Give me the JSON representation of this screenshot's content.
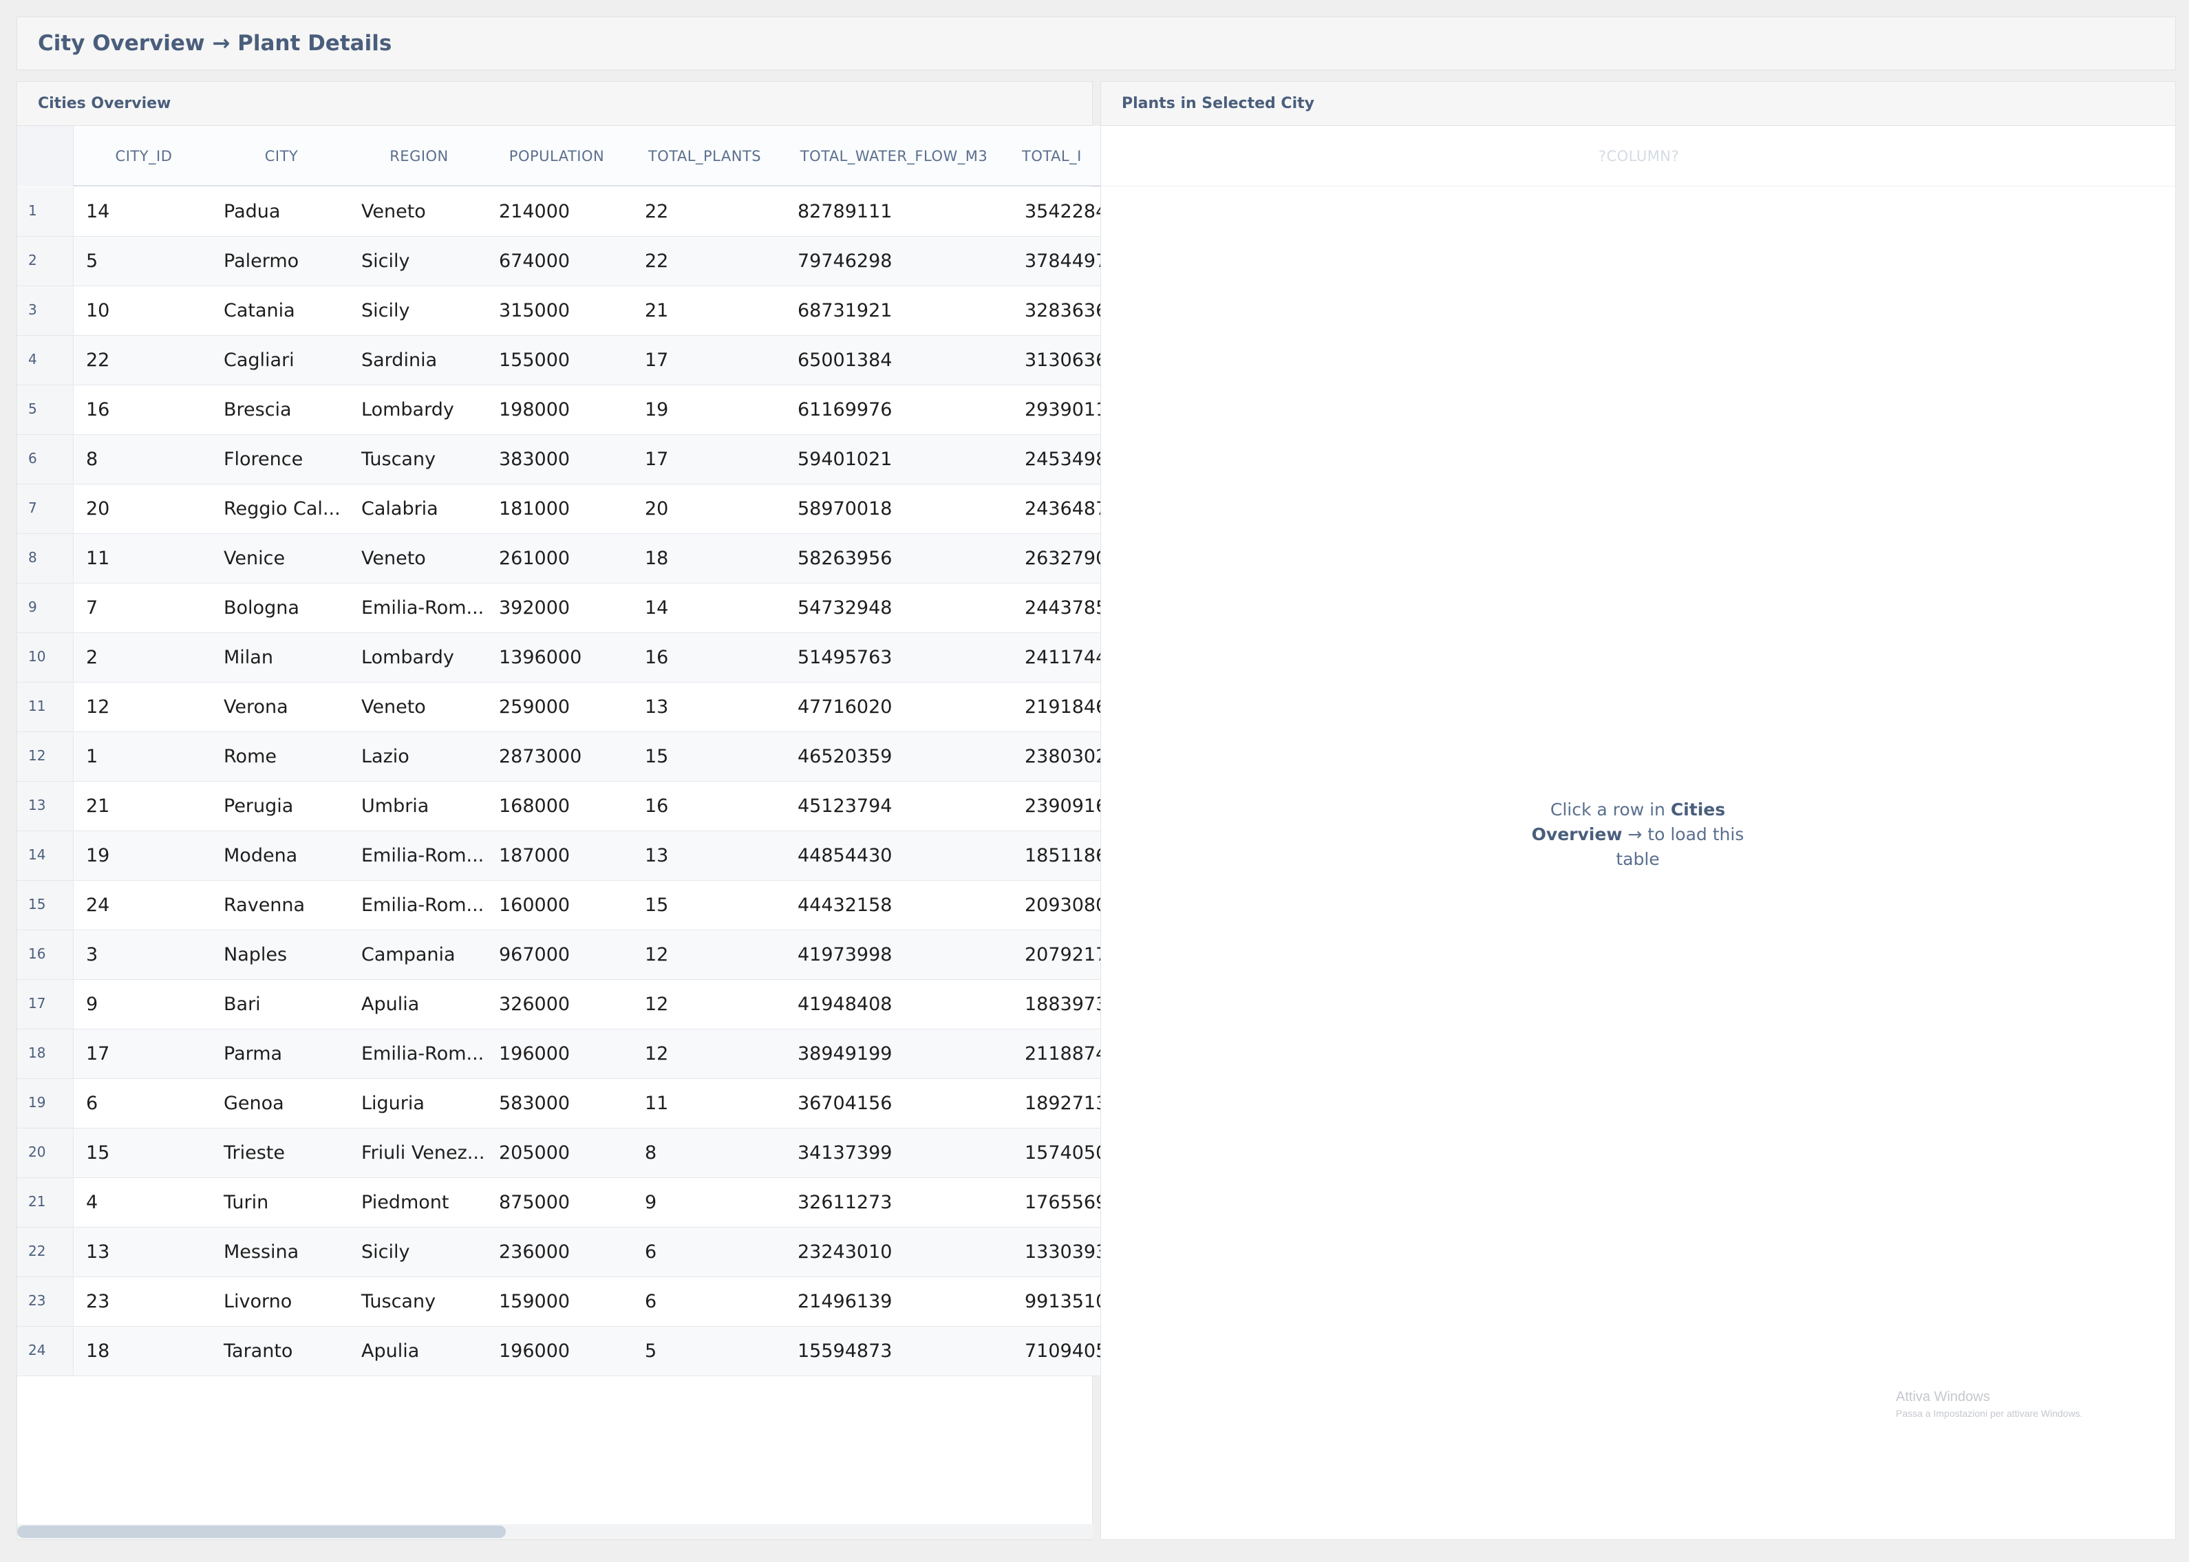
{
  "app": {
    "title": "City Overview → Plant Details"
  },
  "cities_panel": {
    "title": "Cities Overview",
    "columns": [
      "CITY_ID",
      "CITY",
      "REGION",
      "POPULATION",
      "TOTAL_PLANTS",
      "TOTAL_WATER_FLOW_M3",
      "TOTAL_I"
    ],
    "rows": [
      [
        "1",
        "14",
        "Padua",
        "Veneto",
        "214000",
        "22",
        "82789111",
        "3542284"
      ],
      [
        "2",
        "5",
        "Palermo",
        "Sicily",
        "674000",
        "22",
        "79746298",
        "3784497"
      ],
      [
        "3",
        "10",
        "Catania",
        "Sicily",
        "315000",
        "21",
        "68731921",
        "3283636"
      ],
      [
        "4",
        "22",
        "Cagliari",
        "Sardinia",
        "155000",
        "17",
        "65001384",
        "3130636"
      ],
      [
        "5",
        "16",
        "Brescia",
        "Lombardy",
        "198000",
        "19",
        "61169976",
        "2939011"
      ],
      [
        "6",
        "8",
        "Florence",
        "Tuscany",
        "383000",
        "17",
        "59401021",
        "2453498"
      ],
      [
        "7",
        "20",
        "Reggio Cal...",
        "Calabria",
        "181000",
        "20",
        "58970018",
        "2436487"
      ],
      [
        "8",
        "11",
        "Venice",
        "Veneto",
        "261000",
        "18",
        "58263956",
        "2632790"
      ],
      [
        "9",
        "7",
        "Bologna",
        "Emilia-Rom...",
        "392000",
        "14",
        "54732948",
        "2443785"
      ],
      [
        "10",
        "2",
        "Milan",
        "Lombardy",
        "1396000",
        "16",
        "51495763",
        "2411744"
      ],
      [
        "11",
        "12",
        "Verona",
        "Veneto",
        "259000",
        "13",
        "47716020",
        "2191846"
      ],
      [
        "12",
        "1",
        "Rome",
        "Lazio",
        "2873000",
        "15",
        "46520359",
        "2380302"
      ],
      [
        "13",
        "21",
        "Perugia",
        "Umbria",
        "168000",
        "16",
        "45123794",
        "2390916"
      ],
      [
        "14",
        "19",
        "Modena",
        "Emilia-Rom...",
        "187000",
        "13",
        "44854430",
        "1851186"
      ],
      [
        "15",
        "24",
        "Ravenna",
        "Emilia-Rom...",
        "160000",
        "15",
        "44432158",
        "2093080"
      ],
      [
        "16",
        "3",
        "Naples",
        "Campania",
        "967000",
        "12",
        "41973998",
        "2079217"
      ],
      [
        "17",
        "9",
        "Bari",
        "Apulia",
        "326000",
        "12",
        "41948408",
        "1883973"
      ],
      [
        "18",
        "17",
        "Parma",
        "Emilia-Rom...",
        "196000",
        "12",
        "38949199",
        "2118874"
      ],
      [
        "19",
        "6",
        "Genoa",
        "Liguria",
        "583000",
        "11",
        "36704156",
        "1892713"
      ],
      [
        "20",
        "15",
        "Trieste",
        "Friuli Venez...",
        "205000",
        "8",
        "34137399",
        "1574050"
      ],
      [
        "21",
        "4",
        "Turin",
        "Piedmont",
        "875000",
        "9",
        "32611273",
        "1765569"
      ],
      [
        "22",
        "13",
        "Messina",
        "Sicily",
        "236000",
        "6",
        "23243010",
        "1330393"
      ],
      [
        "23",
        "23",
        "Livorno",
        "Tuscany",
        "159000",
        "6",
        "21496139",
        "9913510"
      ],
      [
        "24",
        "18",
        "Taranto",
        "Apulia",
        "196000",
        "5",
        "15594873",
        "7109405"
      ]
    ]
  },
  "plants_panel": {
    "title": "Plants in Selected City",
    "placeholder_column": "?COLUMN?",
    "empty_prefix": "Click a row in ",
    "empty_bold": "Cities Overview",
    "empty_suffix": " → to load this table"
  },
  "watermark": {
    "line1": "Attiva Windows",
    "line2": "Passa a Impostazioni per attivare Windows."
  }
}
